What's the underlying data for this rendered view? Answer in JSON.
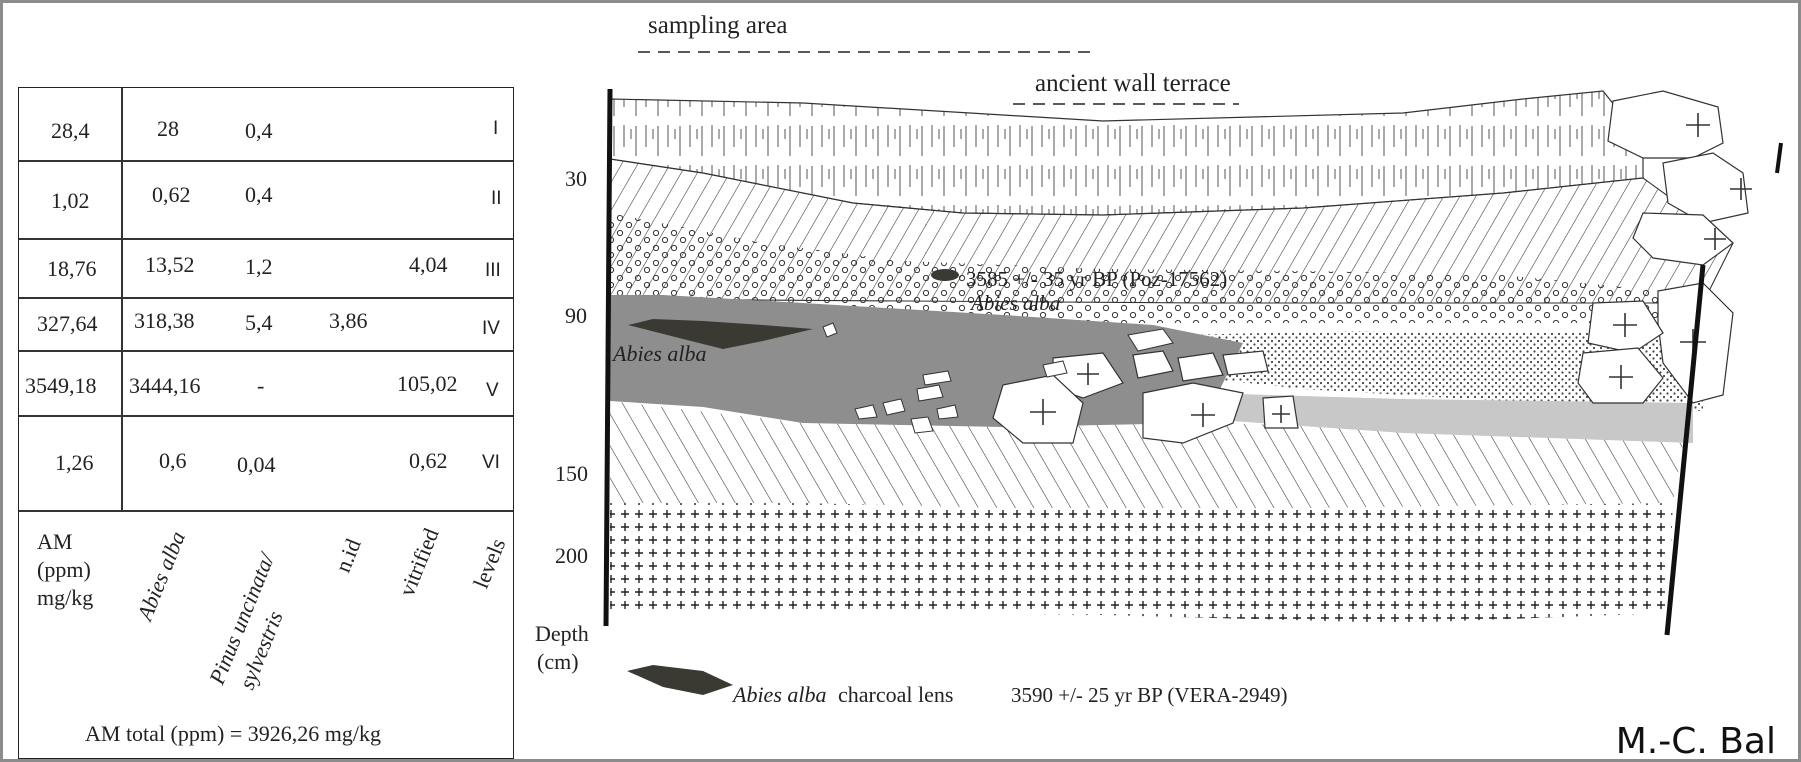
{
  "table": {
    "rows": [
      {
        "total": "28,4",
        "abies": "28",
        "pinus": "0,4",
        "nid": "",
        "vitrified": "",
        "level": "I"
      },
      {
        "total": "1,02",
        "abies": "0,62",
        "pinus": "0,4",
        "nid": "",
        "vitrified": "",
        "level": "II"
      },
      {
        "total": "18,76",
        "abies": "13,52",
        "pinus": "1,2",
        "nid": "",
        "vitrified": "4,04",
        "level": "III"
      },
      {
        "total": "327,64",
        "abies": "318,38",
        "pinus": "5,4",
        "nid": "3,86",
        "vitrified": "",
        "level": "IV"
      },
      {
        "total": "3549,18",
        "abies": "3444,16",
        "pinus": "-",
        "nid": "",
        "vitrified": "105,02",
        "level": "V"
      },
      {
        "total": "1,26",
        "abies": "0,6",
        "pinus": "0,04",
        "nid": "",
        "vitrified": "0,62",
        "level": "VI"
      }
    ],
    "header": {
      "am_line1": "AM",
      "am_line2": "(ppm)",
      "am_line3": "mg/kg",
      "abies": "Abies alba",
      "pinus_line1": "Pinus uncinata/",
      "pinus_line2": "sylvestris",
      "nid": "n.id",
      "vitrified": "vitrified",
      "levels": "levels"
    },
    "total": "AM total (ppm) = 3926,26   mg/kg"
  },
  "section": {
    "sampling_area": "sampling area",
    "wall_terrace": "ancient wall terrace",
    "depth_ticks": [
      "30",
      "90",
      "150",
      "200"
    ],
    "depth_label_1": "Depth",
    "depth_label_2": "(cm)",
    "date_upper": "3585 +/- 35 yr BP (Poz-17562)",
    "abies_upper": "Abies alba",
    "abies_lens": "Abies alba",
    "legend_species": "Abies alba",
    "legend_text": "charcoal lens",
    "legend_date": "3590 +/- 25 yr BP (VERA-2949)"
  },
  "author": "M.-C. Bal",
  "colors": {
    "dark_lens": "#3a3a33",
    "charcoal_layer": "#8e8e8e",
    "light_band": "#c8c8c8",
    "line": "#222222"
  }
}
